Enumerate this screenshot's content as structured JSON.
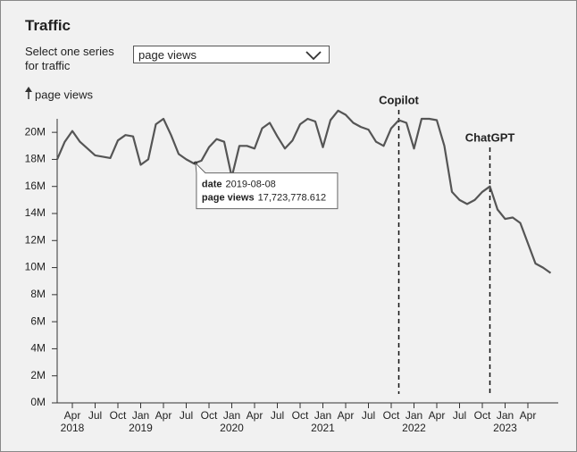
{
  "header": {
    "title": "Traffic"
  },
  "controls": {
    "label_lines": [
      "Select one series",
      "for traffic"
    ],
    "selected": "page views"
  },
  "chart_data": {
    "type": "line",
    "y_label": "page views",
    "x": [
      "2018-02",
      "2018-03",
      "2018-04",
      "2018-05",
      "2018-06",
      "2018-07",
      "2018-08",
      "2018-09",
      "2018-10",
      "2018-11",
      "2018-12",
      "2019-01",
      "2019-02",
      "2019-03",
      "2019-04",
      "2019-05",
      "2019-06",
      "2019-07",
      "2019-08",
      "2019-09",
      "2019-10",
      "2019-11",
      "2019-12",
      "2020-01",
      "2020-02",
      "2020-03",
      "2020-04",
      "2020-05",
      "2020-06",
      "2020-07",
      "2020-08",
      "2020-09",
      "2020-10",
      "2020-11",
      "2020-12",
      "2021-01",
      "2021-02",
      "2021-03",
      "2021-04",
      "2021-05",
      "2021-06",
      "2021-07",
      "2021-08",
      "2021-09",
      "2021-10",
      "2021-11",
      "2021-12",
      "2022-01",
      "2022-02",
      "2022-03",
      "2022-04",
      "2022-05",
      "2022-06",
      "2022-07",
      "2022-08",
      "2022-09",
      "2022-10",
      "2022-11",
      "2022-12",
      "2023-01",
      "2023-02",
      "2023-03",
      "2023-04",
      "2023-05",
      "2023-06",
      "2023-07"
    ],
    "series": [
      {
        "name": "page views",
        "color": "#555555",
        "values": [
          18000000,
          19300000,
          20100000,
          19300000,
          18800000,
          18300000,
          18200000,
          18100000,
          19400000,
          19800000,
          19700000,
          17600000,
          18000000,
          20600000,
          21000000,
          19800000,
          18400000,
          18000000,
          17700000,
          17900000,
          18900000,
          19500000,
          19300000,
          16700000,
          19000000,
          19000000,
          18800000,
          20300000,
          20700000,
          19700000,
          18800000,
          19400000,
          20600000,
          21000000,
          20800000,
          18900000,
          20900000,
          21600000,
          21300000,
          20700000,
          20400000,
          20200000,
          19300000,
          19000000,
          20300000,
          20900000,
          20700000,
          18800000,
          21000000,
          21000000,
          20900000,
          19000000,
          15600000,
          15000000,
          14700000,
          15000000,
          15600000,
          16000000,
          14300000,
          13600000,
          13700000,
          13300000,
          11800000,
          10300000,
          10000000,
          9600000
        ]
      }
    ],
    "xlim": [
      "2018-02",
      "2023-08"
    ],
    "xticks": [
      {
        "value": "2018-04",
        "label": "Apr",
        "year": "2018"
      },
      {
        "value": "2018-07",
        "label": "Jul"
      },
      {
        "value": "2018-10",
        "label": "Oct"
      },
      {
        "value": "2019-01",
        "label": "Jan",
        "year": "2019"
      },
      {
        "value": "2019-04",
        "label": "Apr"
      },
      {
        "value": "2019-07",
        "label": "Jul"
      },
      {
        "value": "2019-10",
        "label": "Oct"
      },
      {
        "value": "2020-01",
        "label": "Jan",
        "year": "2020"
      },
      {
        "value": "2020-04",
        "label": "Apr"
      },
      {
        "value": "2020-07",
        "label": "Jul"
      },
      {
        "value": "2020-10",
        "label": "Oct"
      },
      {
        "value": "2021-01",
        "label": "Jan",
        "year": "2021"
      },
      {
        "value": "2021-04",
        "label": "Apr"
      },
      {
        "value": "2021-07",
        "label": "Jul"
      },
      {
        "value": "2021-10",
        "label": "Oct"
      },
      {
        "value": "2022-01",
        "label": "Jan",
        "year": "2022"
      },
      {
        "value": "2022-04",
        "label": "Apr"
      },
      {
        "value": "2022-07",
        "label": "Jul"
      },
      {
        "value": "2022-10",
        "label": "Oct"
      },
      {
        "value": "2023-01",
        "label": "Jan",
        "year": "2023"
      },
      {
        "value": "2023-04",
        "label": "Apr"
      }
    ],
    "ylim": [
      0,
      21000000
    ],
    "yticks": [
      {
        "value": 0,
        "label": "0M"
      },
      {
        "value": 2000000,
        "label": "2M"
      },
      {
        "value": 4000000,
        "label": "4M"
      },
      {
        "value": 6000000,
        "label": "6M"
      },
      {
        "value": 8000000,
        "label": "8M"
      },
      {
        "value": 10000000,
        "label": "10M"
      },
      {
        "value": 12000000,
        "label": "12M"
      },
      {
        "value": 14000000,
        "label": "14M"
      },
      {
        "value": 16000000,
        "label": "16M"
      },
      {
        "value": 18000000,
        "label": "18M"
      },
      {
        "value": 20000000,
        "label": "20M"
      }
    ],
    "annotations": [
      {
        "x": "2021-11",
        "label": "Copilot"
      },
      {
        "x": "2022-11",
        "label": "ChatGPT"
      }
    ],
    "tooltip": {
      "date_key": "date",
      "date": "2019-08-08",
      "value_key": "page views",
      "value": 17723778.612,
      "value_label": "17,723,778.612"
    }
  }
}
